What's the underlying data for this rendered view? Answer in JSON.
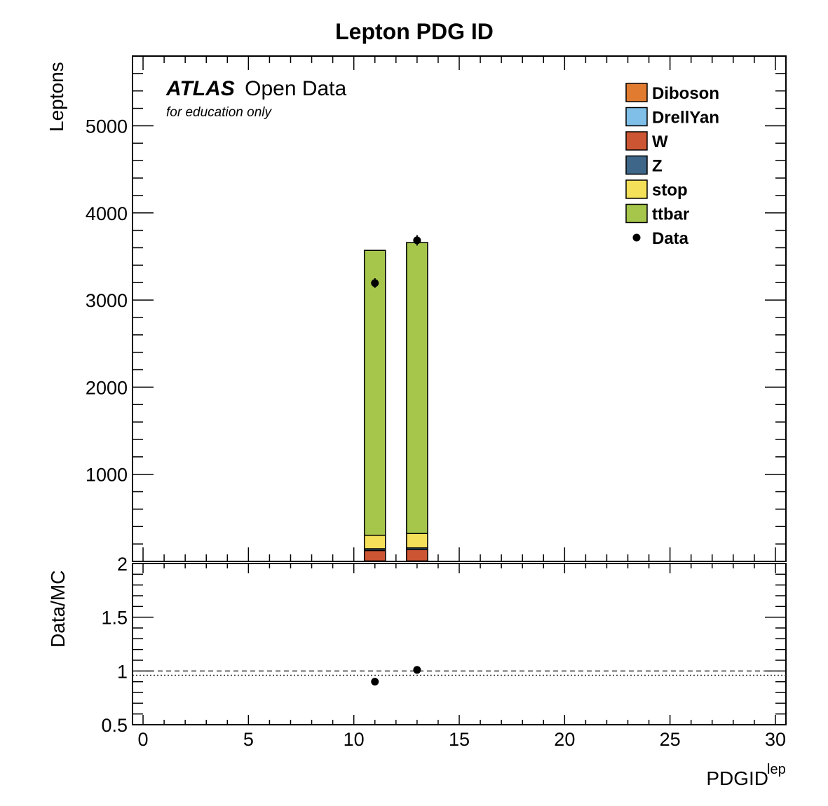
{
  "chart_data": {
    "type": "bar",
    "stacked": true,
    "title": "Lepton PDG ID",
    "xlabel": "PDGID",
    "xlabel_sup": "lep",
    "ylabel": "Leptons",
    "ratio_ylabel": "Data/MC",
    "xlim": [
      -0.5,
      30.5
    ],
    "ylim": [
      0,
      5800
    ],
    "ratio_ylim": [
      0.5,
      2
    ],
    "x_ticks": [
      0,
      5,
      10,
      15,
      20,
      25,
      30
    ],
    "y_ticks": [
      1000,
      2000,
      3000,
      4000,
      5000
    ],
    "y_ticks_top_label": "2",
    "ratio_ticks": [
      "0.5",
      "1",
      "1.5",
      "2"
    ],
    "ratio_tick_values": [
      0.5,
      1,
      1.5,
      2
    ],
    "bins": [
      {
        "x": 11,
        "low": 10.5,
        "high": 11.5
      },
      {
        "x": 13,
        "low": 12.5,
        "high": 13.5
      }
    ],
    "series": [
      {
        "name": "Diboson",
        "color": "#e07b2f",
        "values": [
          5,
          5
        ]
      },
      {
        "name": "DrellYan",
        "color": "#7fbfe8",
        "values": [
          0,
          0
        ]
      },
      {
        "name": "W",
        "color": "#cc5533",
        "values": [
          120,
          130
        ]
      },
      {
        "name": "Z",
        "color": "#3d6688",
        "values": [
          20,
          20
        ]
      },
      {
        "name": "stop",
        "color": "#f5e05a",
        "values": [
          155,
          165
        ]
      },
      {
        "name": "ttbar",
        "color": "#a6c64b",
        "values": [
          3270,
          3340
        ]
      }
    ],
    "data": {
      "name": "Data",
      "x": [
        11,
        13
      ],
      "y": [
        3195,
        3685
      ],
      "err": [
        55,
        60
      ]
    },
    "ratio": {
      "x": [
        11,
        13
      ],
      "y": [
        0.9,
        1.01
      ]
    },
    "ratio_reference_dashed": 1.0,
    "ratio_reference_dotted": 0.96,
    "annotation": {
      "atlas": "ATLAS",
      "open_data": "Open Data",
      "subtitle": "for education only"
    },
    "grid": false,
    "legend_position": "top-right"
  },
  "colors": {
    "axes": "#000000",
    "background": "#ffffff"
  }
}
